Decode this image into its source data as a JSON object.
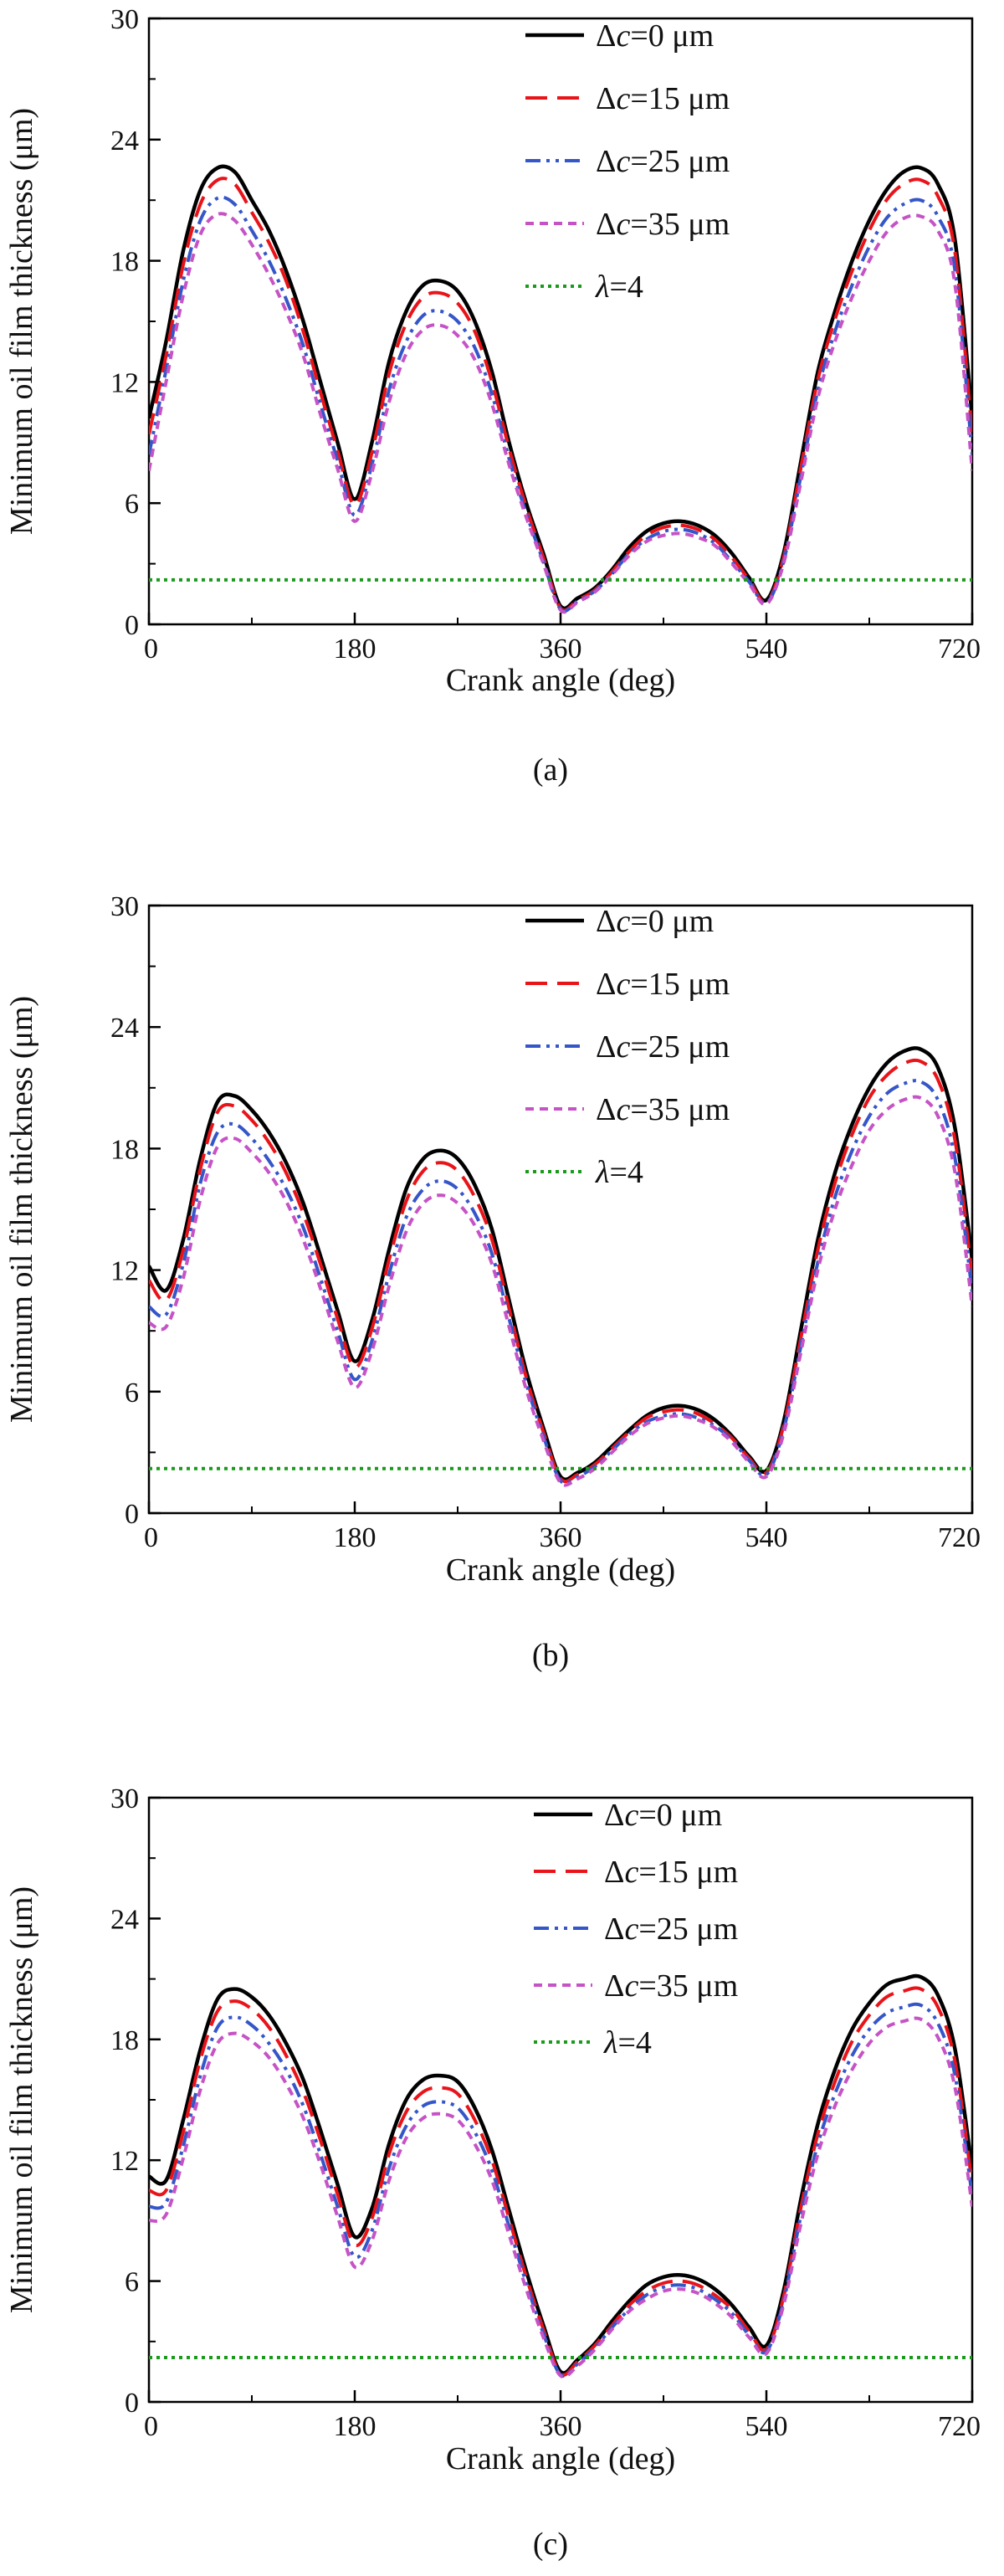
{
  "chart_data": [
    {
      "type": "line",
      "panel_label": "(a)",
      "xlabel": "Crank angle (deg)",
      "ylabel": "Minimum oil film thickness (μm)",
      "xlim": [
        0,
        720
      ],
      "ylim": [
        0,
        30
      ],
      "xticks": [
        0,
        180,
        360,
        540,
        720
      ],
      "yticks": [
        0,
        6,
        12,
        18,
        24,
        30
      ],
      "grid": false,
      "legend_position": "top-right",
      "x": [
        0,
        15,
        30,
        45,
        60,
        75,
        90,
        105,
        120,
        135,
        150,
        165,
        180,
        195,
        210,
        225,
        240,
        255,
        270,
        285,
        300,
        315,
        330,
        345,
        360,
        375,
        390,
        405,
        420,
        435,
        450,
        465,
        480,
        495,
        510,
        525,
        540,
        555,
        570,
        585,
        600,
        615,
        630,
        645,
        660,
        675,
        690,
        705,
        720
      ],
      "series": [
        {
          "name": "Δc=0 μm",
          "color": "#000000",
          "dash": "solid",
          "values": [
            10.2,
            14,
            18.5,
            21.5,
            22.6,
            22.4,
            21,
            19.5,
            17.5,
            15,
            12,
            9,
            6.2,
            9,
            13,
            15.5,
            16.8,
            17,
            16.5,
            15,
            12.5,
            9,
            6,
            3.5,
            0.9,
            1.3,
            1.8,
            2.7,
            3.8,
            4.6,
            5,
            5.1,
            4.9,
            4.4,
            3.5,
            2.3,
            1.2,
            3.5,
            8,
            12.5,
            15.5,
            18,
            20,
            21.5,
            22.4,
            22.6,
            21.8,
            19,
            10.2
          ]
        },
        {
          "name": "Δc=15 μm",
          "color": "#e8141a",
          "dash": "long-dash",
          "values": [
            9.4,
            13.3,
            17.8,
            20.8,
            22,
            21.8,
            20.4,
            18.9,
            17,
            14.5,
            11.5,
            8.6,
            5.9,
            8.5,
            12.4,
            14.9,
            16.2,
            16.4,
            15.9,
            14.5,
            12,
            8.7,
            5.8,
            3.3,
            0.8,
            1.2,
            1.7,
            2.6,
            3.6,
            4.4,
            4.8,
            4.9,
            4.7,
            4.2,
            3.3,
            2.2,
            1.1,
            3.3,
            7.7,
            12.1,
            15.1,
            17.5,
            19.5,
            21,
            21.8,
            22,
            21.2,
            18.4,
            9.4
          ]
        },
        {
          "name": "Δc=25 μm",
          "color": "#3556c8",
          "dash": "dash-dot-dot",
          "values": [
            8.4,
            12.6,
            17,
            20,
            21.1,
            20.8,
            19.5,
            18,
            16.1,
            13.8,
            10.9,
            8.1,
            5.4,
            7.9,
            11.6,
            14,
            15.3,
            15.5,
            15,
            13.7,
            11.4,
            8.2,
            5.5,
            3.1,
            0.75,
            1.15,
            1.65,
            2.5,
            3.5,
            4.2,
            4.6,
            4.7,
            4.5,
            4.0,
            3.1,
            2.1,
            1.05,
            3.1,
            7.3,
            11.6,
            14.5,
            16.8,
            18.7,
            20.1,
            20.8,
            21,
            20.2,
            17.5,
            8.4
          ]
        },
        {
          "name": "Δc=35 μm",
          "color": "#c653c6",
          "dash": "short-dash",
          "values": [
            7.6,
            12,
            16.3,
            19.3,
            20.3,
            20,
            18.8,
            17.3,
            15.5,
            13.3,
            10.4,
            7.7,
            5.1,
            7.5,
            11,
            13.4,
            14.6,
            14.8,
            14.3,
            13.1,
            10.9,
            7.9,
            5.3,
            3.0,
            0.7,
            1.1,
            1.6,
            2.45,
            3.4,
            4.1,
            4.4,
            4.5,
            4.3,
            3.9,
            3.0,
            2.0,
            1.0,
            3.0,
            7.0,
            11.2,
            14.0,
            16.2,
            18.0,
            19.4,
            20.1,
            20.2,
            19.5,
            16.8,
            7.6
          ]
        },
        {
          "name": "λ=4",
          "color": "#1a9a1a",
          "dash": "dotted",
          "constant": 2.2
        }
      ]
    },
    {
      "type": "line",
      "panel_label": "(b)",
      "xlabel": "Crank angle (deg)",
      "ylabel": "Minimum oil film thickness (μm)",
      "xlim": [
        0,
        720
      ],
      "ylim": [
        0,
        30
      ],
      "xticks": [
        0,
        180,
        360,
        540,
        720
      ],
      "yticks": [
        0,
        6,
        12,
        18,
        24,
        30
      ],
      "grid": false,
      "legend_position": "top-right",
      "x": [
        0,
        15,
        30,
        45,
        60,
        75,
        90,
        105,
        120,
        135,
        150,
        165,
        180,
        195,
        210,
        225,
        240,
        255,
        270,
        285,
        300,
        315,
        330,
        345,
        360,
        375,
        390,
        405,
        420,
        435,
        450,
        465,
        480,
        495,
        510,
        525,
        540,
        555,
        570,
        585,
        600,
        615,
        630,
        645,
        660,
        675,
        690,
        705,
        720
      ],
      "series": [
        {
          "name": "Δc=0 μm",
          "color": "#000000",
          "dash": "solid",
          "values": [
            12.2,
            11,
            13.5,
            17.5,
            20.3,
            20.6,
            19.9,
            18.8,
            17.3,
            15.3,
            12.7,
            10,
            7.5,
            9.5,
            13,
            16,
            17.5,
            17.9,
            17.5,
            16.2,
            14,
            10.5,
            7,
            4.2,
            1.8,
            2,
            2.5,
            3.3,
            4.1,
            4.8,
            5.2,
            5.3,
            5.1,
            4.6,
            3.8,
            2.8,
            2.1,
            4.5,
            9,
            13.5,
            16.8,
            19.2,
            21,
            22.2,
            22.8,
            22.9,
            22,
            19,
            12.5
          ]
        },
        {
          "name": "Δc=15 μm",
          "color": "#e8141a",
          "dash": "long-dash",
          "values": [
            11.5,
            10.5,
            13,
            17,
            19.8,
            20.1,
            19.4,
            18.3,
            16.8,
            14.8,
            12.3,
            9.6,
            7.2,
            9.1,
            12.5,
            15.4,
            16.9,
            17.3,
            16.9,
            15.6,
            13.5,
            10.1,
            6.7,
            4.0,
            1.7,
            1.9,
            2.4,
            3.2,
            4.0,
            4.7,
            5.0,
            5.1,
            4.9,
            4.4,
            3.7,
            2.7,
            2.0,
            4.3,
            8.6,
            13.0,
            16.3,
            18.7,
            20.5,
            21.6,
            22.2,
            22.3,
            21.4,
            18.4,
            11.7
          ]
        },
        {
          "name": "Δc=25 μm",
          "color": "#3556c8",
          "dash": "dash-dot-dot",
          "values": [
            10.2,
            9.8,
            12.3,
            16.3,
            18.8,
            19.2,
            18.5,
            17.4,
            16.0,
            14.1,
            11.6,
            9.0,
            6.6,
            8.5,
            11.8,
            14.6,
            16.0,
            16.4,
            16.0,
            14.8,
            12.8,
            9.6,
            6.4,
            3.8,
            1.6,
            1.8,
            2.3,
            3.1,
            3.9,
            4.5,
            4.8,
            4.9,
            4.7,
            4.3,
            3.6,
            2.6,
            1.9,
            4.1,
            8.2,
            12.4,
            15.6,
            17.9,
            19.6,
            20.7,
            21.2,
            21.3,
            20.4,
            17.5,
            10.9
          ]
        },
        {
          "name": "Δc=35 μm",
          "color": "#c653c6",
          "dash": "short-dash",
          "values": [
            9.4,
            9.2,
            11.6,
            15.5,
            18.1,
            18.5,
            17.8,
            16.8,
            15.4,
            13.5,
            11.1,
            8.5,
            6.2,
            8.0,
            11.2,
            13.9,
            15.3,
            15.7,
            15.3,
            14.2,
            12.3,
            9.2,
            6.1,
            3.6,
            1.5,
            1.7,
            2.2,
            3.0,
            3.8,
            4.4,
            4.7,
            4.8,
            4.6,
            4.2,
            3.5,
            2.5,
            1.8,
            3.9,
            7.9,
            12.0,
            15.0,
            17.2,
            18.9,
            19.9,
            20.4,
            20.5,
            19.6,
            16.8,
            10.2
          ]
        },
        {
          "name": "λ=4",
          "color": "#1a9a1a",
          "dash": "dotted",
          "constant": 2.2
        }
      ]
    },
    {
      "type": "line",
      "panel_label": "(c)",
      "xlabel": "Crank angle (deg)",
      "ylabel": "Minimum oil film thickness (μm)",
      "xlim": [
        0,
        720
      ],
      "ylim": [
        0,
        30
      ],
      "xticks": [
        0,
        180,
        360,
        540,
        720
      ],
      "yticks": [
        0,
        6,
        12,
        18,
        24,
        30
      ],
      "grid": false,
      "legend_position": "top-right",
      "x": [
        0,
        15,
        30,
        45,
        60,
        75,
        90,
        105,
        120,
        135,
        150,
        165,
        180,
        195,
        210,
        225,
        240,
        255,
        270,
        285,
        300,
        315,
        330,
        345,
        360,
        375,
        390,
        405,
        420,
        435,
        450,
        465,
        480,
        495,
        510,
        525,
        540,
        555,
        570,
        585,
        600,
        615,
        630,
        645,
        660,
        675,
        690,
        705,
        720
      ],
      "series": [
        {
          "name": "Δc=0 μm",
          "color": "#000000",
          "dash": "solid",
          "values": [
            11.2,
            11,
            14,
            17.5,
            20,
            20.5,
            20.1,
            19.2,
            17.8,
            16,
            13.5,
            10.8,
            8.2,
            9.6,
            12.8,
            15,
            16,
            16.2,
            15.9,
            14.6,
            12.5,
            9.5,
            6.5,
            3.8,
            1.5,
            2.1,
            2.9,
            4.0,
            5.0,
            5.8,
            6.2,
            6.3,
            6.1,
            5.6,
            4.8,
            3.7,
            2.8,
            5.5,
            10,
            13.8,
            16.5,
            18.5,
            19.8,
            20.7,
            21,
            21.1,
            20.2,
            17.5,
            11.5
          ]
        },
        {
          "name": "Δc=15 μm",
          "color": "#e8141a",
          "dash": "long-dash",
          "values": [
            10.5,
            10.5,
            13.4,
            17,
            19.4,
            19.9,
            19.5,
            18.6,
            17.2,
            15.4,
            13.0,
            10.3,
            7.8,
            9.1,
            12.3,
            14.4,
            15.4,
            15.6,
            15.3,
            14.0,
            12.0,
            9.1,
            6.2,
            3.6,
            1.4,
            2.0,
            2.8,
            3.8,
            4.8,
            5.5,
            5.9,
            6.0,
            5.8,
            5.3,
            4.6,
            3.5,
            2.6,
            5.2,
            9.6,
            13.3,
            15.9,
            17.9,
            19.2,
            20.1,
            20.4,
            20.5,
            19.6,
            16.9,
            10.8
          ]
        },
        {
          "name": "Δc=25 μm",
          "color": "#3556c8",
          "dash": "dash-dot-dot",
          "values": [
            9.7,
            9.9,
            12.7,
            16.2,
            18.6,
            19.1,
            18.7,
            17.8,
            16.5,
            14.7,
            12.3,
            9.7,
            7.2,
            8.5,
            11.6,
            13.7,
            14.7,
            14.9,
            14.6,
            13.4,
            11.5,
            8.7,
            5.9,
            3.4,
            1.35,
            1.9,
            2.7,
            3.7,
            4.6,
            5.3,
            5.7,
            5.8,
            5.6,
            5.1,
            4.4,
            3.3,
            2.5,
            5.0,
            9.2,
            12.8,
            15.3,
            17.2,
            18.5,
            19.3,
            19.6,
            19.7,
            18.8,
            16.2,
            10.2
          ]
        },
        {
          "name": "Δc=35 μm",
          "color": "#c653c6",
          "dash": "short-dash",
          "values": [
            9.0,
            9.3,
            12.1,
            15.5,
            17.8,
            18.3,
            17.9,
            17.1,
            15.8,
            14.1,
            11.8,
            9.2,
            6.7,
            8.0,
            11.0,
            13.1,
            14.1,
            14.3,
            14.0,
            12.8,
            11.0,
            8.3,
            5.6,
            3.2,
            1.3,
            1.8,
            2.6,
            3.6,
            4.5,
            5.1,
            5.5,
            5.6,
            5.4,
            4.9,
            4.2,
            3.2,
            2.4,
            4.8,
            8.8,
            12.3,
            14.7,
            16.5,
            17.8,
            18.6,
            18.9,
            19.0,
            18.1,
            15.6,
            9.7
          ]
        },
        {
          "name": "λ=4",
          "color": "#1a9a1a",
          "dash": "dotted",
          "constant": 2.2
        }
      ]
    }
  ]
}
